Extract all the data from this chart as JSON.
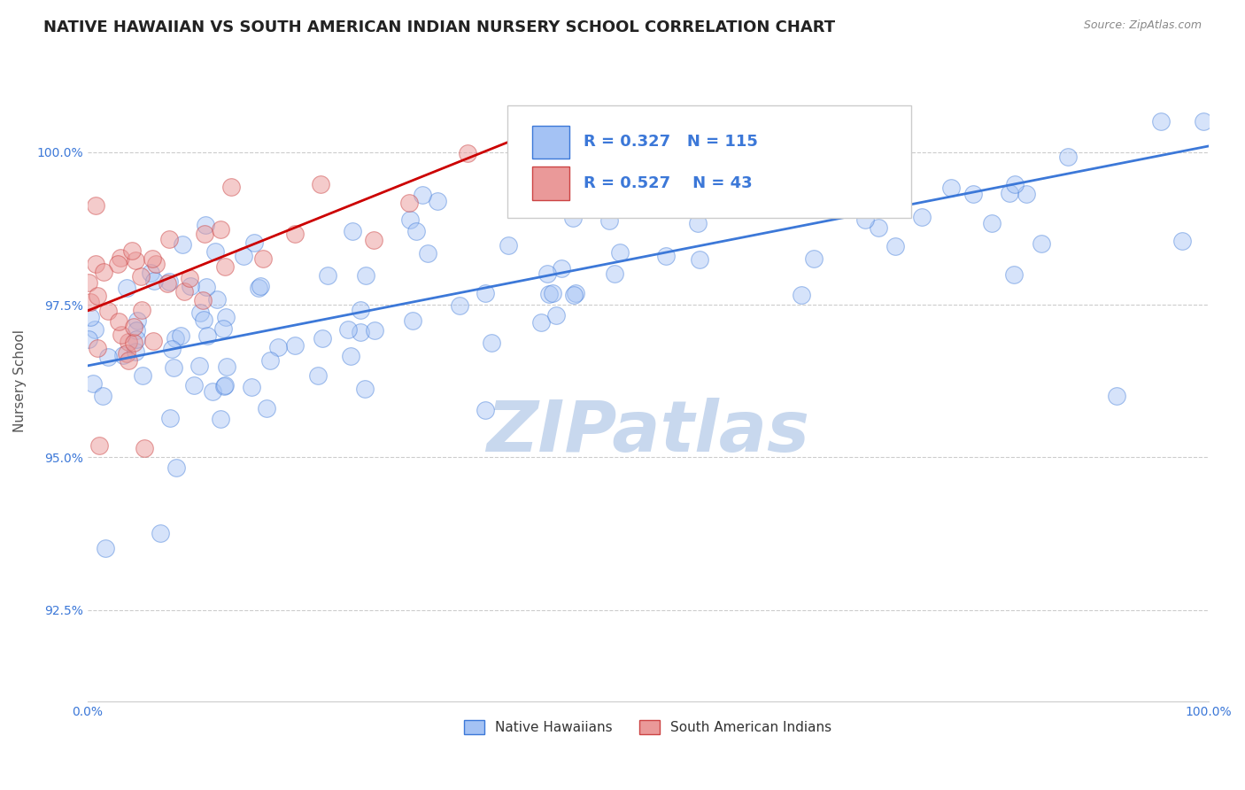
{
  "title": "NATIVE HAWAIIAN VS SOUTH AMERICAN INDIAN NURSERY SCHOOL CORRELATION CHART",
  "source": "Source: ZipAtlas.com",
  "ylabel": "Nursery School",
  "xlim": [
    0,
    1
  ],
  "ylim": [
    0.91,
    1.015
  ],
  "yticks": [
    0.925,
    0.95,
    0.975,
    1.0
  ],
  "ytick_labels": [
    "92.5%",
    "95.0%",
    "97.5%",
    "100.0%"
  ],
  "xticks": [
    0.0,
    1.0
  ],
  "xtick_labels": [
    "0.0%",
    "100.0%"
  ],
  "blue_R": 0.327,
  "blue_N": 115,
  "pink_R": 0.527,
  "pink_N": 43,
  "blue_color": "#a4c2f4",
  "pink_color": "#ea9999",
  "blue_line_color": "#3c78d8",
  "pink_line_color": "#cc0000",
  "legend_label_blue": "Native Hawaiians",
  "legend_label_pink": "South American Indians",
  "watermark": "ZIPatlas",
  "watermark_color": "#c8d8ee",
  "background_color": "#ffffff",
  "title_fontsize": 13,
  "axis_label_fontsize": 11,
  "tick_fontsize": 10,
  "annotation_color": "#3c78d8",
  "blue_line_y_start": 0.965,
  "blue_line_y_end": 1.001,
  "pink_line_x_start": 0.0,
  "pink_line_x_end": 0.38,
  "pink_line_y_start": 0.974,
  "pink_line_y_end": 1.002
}
